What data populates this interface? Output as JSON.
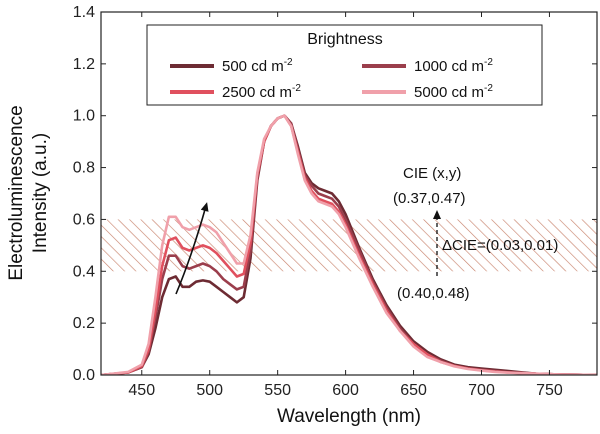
{
  "chart_data": {
    "type": "line",
    "xlabel": "Wavelength (nm)",
    "ylabel_line1": "Electroluminescence",
    "ylabel_line2": "Intensity (a.u.)",
    "xlim": [
      420,
      785
    ],
    "ylim": [
      0.0,
      1.4
    ],
    "xticks": [
      450,
      500,
      550,
      600,
      650,
      700,
      750
    ],
    "yticks": [
      0.0,
      0.2,
      0.4,
      0.6,
      0.8,
      1.0,
      1.2,
      1.4
    ],
    "legend_title": "Brightness",
    "legend_position": "top-center",
    "band": {
      "y_from": 0.4,
      "y_to": 0.6,
      "pattern": "diagonal hatch",
      "color": "#c9846e"
    },
    "series": [
      {
        "name": "500 cd m-2",
        "label_base": "500 cd m",
        "label_exp": "-2",
        "color": "#6d2b33",
        "x": [
          420,
          440,
          450,
          455,
          460,
          465,
          470,
          475,
          480,
          485,
          490,
          495,
          500,
          505,
          510,
          515,
          520,
          525,
          530,
          535,
          540,
          545,
          550,
          555,
          560,
          565,
          570,
          575,
          580,
          585,
          590,
          595,
          600,
          610,
          620,
          630,
          640,
          650,
          660,
          670,
          680,
          690,
          700,
          710,
          720,
          730,
          740,
          750,
          760,
          770,
          785
        ],
        "y": [
          0.0,
          0.01,
          0.03,
          0.08,
          0.18,
          0.3,
          0.37,
          0.38,
          0.34,
          0.34,
          0.36,
          0.365,
          0.36,
          0.34,
          0.32,
          0.3,
          0.28,
          0.3,
          0.45,
          0.75,
          0.9,
          0.96,
          0.99,
          1.0,
          0.97,
          0.88,
          0.78,
          0.74,
          0.72,
          0.71,
          0.7,
          0.67,
          0.62,
          0.49,
          0.37,
          0.27,
          0.19,
          0.13,
          0.09,
          0.06,
          0.04,
          0.03,
          0.025,
          0.02,
          0.015,
          0.01,
          0.005,
          0.003,
          0.002,
          0.001,
          0.0
        ]
      },
      {
        "name": "1000 cd m-2",
        "label_base": "1000 cd m",
        "label_exp": "-2",
        "color": "#9b3e4c",
        "x": [
          420,
          440,
          450,
          455,
          460,
          465,
          470,
          475,
          480,
          485,
          490,
          495,
          500,
          505,
          510,
          515,
          520,
          525,
          530,
          535,
          540,
          545,
          550,
          555,
          560,
          565,
          570,
          575,
          580,
          585,
          590,
          595,
          600,
          610,
          620,
          630,
          640,
          650,
          660,
          670,
          680,
          690,
          700,
          710,
          720,
          730,
          740,
          750,
          760,
          770,
          785
        ],
        "y": [
          0.0,
          0.01,
          0.03,
          0.09,
          0.22,
          0.37,
          0.46,
          0.46,
          0.42,
          0.41,
          0.42,
          0.43,
          0.42,
          0.4,
          0.37,
          0.35,
          0.33,
          0.34,
          0.48,
          0.76,
          0.9,
          0.96,
          0.99,
          1.0,
          0.97,
          0.87,
          0.77,
          0.73,
          0.7,
          0.69,
          0.68,
          0.65,
          0.6,
          0.48,
          0.36,
          0.26,
          0.18,
          0.12,
          0.08,
          0.055,
          0.035,
          0.025,
          0.02,
          0.015,
          0.01,
          0.008,
          0.005,
          0.003,
          0.002,
          0.001,
          0.0
        ]
      },
      {
        "name": "2500 cd m-2",
        "label_base": "2500 cd m",
        "label_exp": "-2",
        "color": "#e0505e",
        "x": [
          420,
          440,
          450,
          455,
          460,
          465,
          470,
          475,
          480,
          485,
          490,
          495,
          500,
          505,
          510,
          515,
          520,
          525,
          530,
          535,
          540,
          545,
          550,
          555,
          560,
          565,
          570,
          575,
          580,
          585,
          590,
          595,
          600,
          610,
          620,
          630,
          640,
          650,
          660,
          670,
          680,
          690,
          700,
          710,
          720,
          730,
          740,
          750,
          760,
          770,
          785
        ],
        "y": [
          0.0,
          0.01,
          0.035,
          0.1,
          0.25,
          0.42,
          0.52,
          0.53,
          0.49,
          0.48,
          0.49,
          0.5,
          0.49,
          0.47,
          0.44,
          0.41,
          0.38,
          0.39,
          0.51,
          0.77,
          0.9,
          0.96,
          0.99,
          1.0,
          0.96,
          0.86,
          0.76,
          0.71,
          0.68,
          0.67,
          0.66,
          0.63,
          0.58,
          0.46,
          0.35,
          0.25,
          0.17,
          0.12,
          0.08,
          0.05,
          0.035,
          0.025,
          0.018,
          0.013,
          0.01,
          0.007,
          0.005,
          0.003,
          0.002,
          0.001,
          0.0
        ]
      },
      {
        "name": "5000 cd m-2",
        "label_base": "5000 cd m",
        "label_exp": "-2",
        "color": "#f0a0aa",
        "x": [
          420,
          440,
          450,
          455,
          460,
          465,
          470,
          475,
          480,
          485,
          490,
          495,
          500,
          505,
          510,
          515,
          520,
          525,
          530,
          535,
          540,
          545,
          550,
          555,
          560,
          565,
          570,
          575,
          580,
          585,
          590,
          595,
          600,
          610,
          620,
          630,
          640,
          650,
          660,
          670,
          680,
          690,
          700,
          710,
          720,
          730,
          740,
          750,
          760,
          770,
          785
        ],
        "y": [
          0.0,
          0.012,
          0.04,
          0.12,
          0.3,
          0.5,
          0.61,
          0.61,
          0.57,
          0.56,
          0.57,
          0.58,
          0.57,
          0.55,
          0.51,
          0.47,
          0.43,
          0.43,
          0.54,
          0.78,
          0.91,
          0.96,
          0.99,
          1.0,
          0.96,
          0.85,
          0.75,
          0.7,
          0.67,
          0.66,
          0.65,
          0.62,
          0.57,
          0.45,
          0.34,
          0.24,
          0.17,
          0.11,
          0.07,
          0.05,
          0.033,
          0.023,
          0.017,
          0.012,
          0.009,
          0.007,
          0.005,
          0.003,
          0.002,
          0.001,
          0.0
        ]
      }
    ],
    "annotations": {
      "cie_title": "CIE (x,y)",
      "cie_top": "(0.37,0.47)",
      "cie_bottom": "(0.40,0.48)",
      "delta_symbol": "Δ",
      "delta_text": "CIE=(0.03,0.01)"
    }
  }
}
